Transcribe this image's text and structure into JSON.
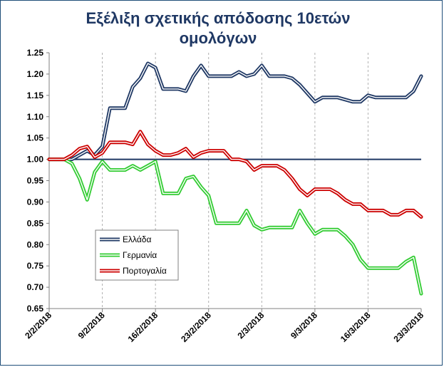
{
  "chart_data": {
    "type": "line",
    "title_lines": [
      "Εξέλιξη σχετικής απόδοσης 10ετών",
      "ομολόγων"
    ],
    "xlabel": "",
    "ylabel": "",
    "ylim": [
      0.65,
      1.25
    ],
    "yticks": [
      "1.25",
      "1.20",
      "1.15",
      "1.10",
      "1.05",
      "1.00",
      "0.95",
      "0.90",
      "0.85",
      "0.80",
      "0.75",
      "0.70",
      "0.65"
    ],
    "xticks": [
      "2/2/2018",
      "9/2/2018",
      "16/2/2018",
      "23/2/2018",
      "2/3/2018",
      "9/3/2018",
      "16/3/2018",
      "23/3/2018"
    ],
    "grid": "vertical dashed",
    "legend_position": "lower-left",
    "x_index_range": [
      0,
      49
    ],
    "series": [
      {
        "name": "Ελλάδα",
        "color": "#1f3864",
        "values": [
          1.0,
          1.0,
          1.0,
          1.0,
          1.01,
          1.02,
          1.01,
          1.03,
          1.12,
          1.12,
          1.12,
          1.17,
          1.19,
          1.225,
          1.215,
          1.165,
          1.165,
          1.165,
          1.16,
          1.195,
          1.22,
          1.195,
          1.195,
          1.195,
          1.195,
          1.205,
          1.195,
          1.2,
          1.22,
          1.195,
          1.195,
          1.195,
          1.19,
          1.175,
          1.155,
          1.135,
          1.145,
          1.145,
          1.145,
          1.14,
          1.135,
          1.135,
          1.15,
          1.145,
          1.145,
          1.145,
          1.145,
          1.145,
          1.16,
          1.195
        ]
      },
      {
        "name": "Γερμανία",
        "color": "#33cc33",
        "values": [
          1.0,
          1.0,
          1.0,
          0.99,
          0.955,
          0.905,
          0.97,
          0.995,
          0.975,
          0.975,
          0.975,
          0.985,
          0.975,
          0.985,
          0.995,
          0.92,
          0.92,
          0.92,
          0.955,
          0.96,
          0.935,
          0.915,
          0.85,
          0.85,
          0.85,
          0.85,
          0.88,
          0.845,
          0.835,
          0.84,
          0.84,
          0.84,
          0.84,
          0.88,
          0.85,
          0.825,
          0.835,
          0.835,
          0.835,
          0.82,
          0.8,
          0.765,
          0.745,
          0.745,
          0.745,
          0.745,
          0.745,
          0.76,
          0.77,
          0.685
        ]
      },
      {
        "name": "Πορτογαλία",
        "color": "#cc0000",
        "values": [
          1.0,
          1.0,
          1.0,
          1.01,
          1.025,
          1.03,
          1.005,
          1.015,
          1.04,
          1.04,
          1.04,
          1.035,
          1.065,
          1.035,
          1.02,
          1.01,
          1.01,
          1.015,
          1.025,
          1.005,
          1.015,
          1.02,
          1.02,
          1.02,
          1.0,
          1.0,
          0.995,
          0.975,
          0.985,
          0.985,
          0.985,
          0.975,
          0.955,
          0.93,
          0.915,
          0.93,
          0.93,
          0.93,
          0.92,
          0.905,
          0.895,
          0.895,
          0.88,
          0.88,
          0.88,
          0.87,
          0.87,
          0.88,
          0.88,
          0.865
        ]
      }
    ]
  }
}
